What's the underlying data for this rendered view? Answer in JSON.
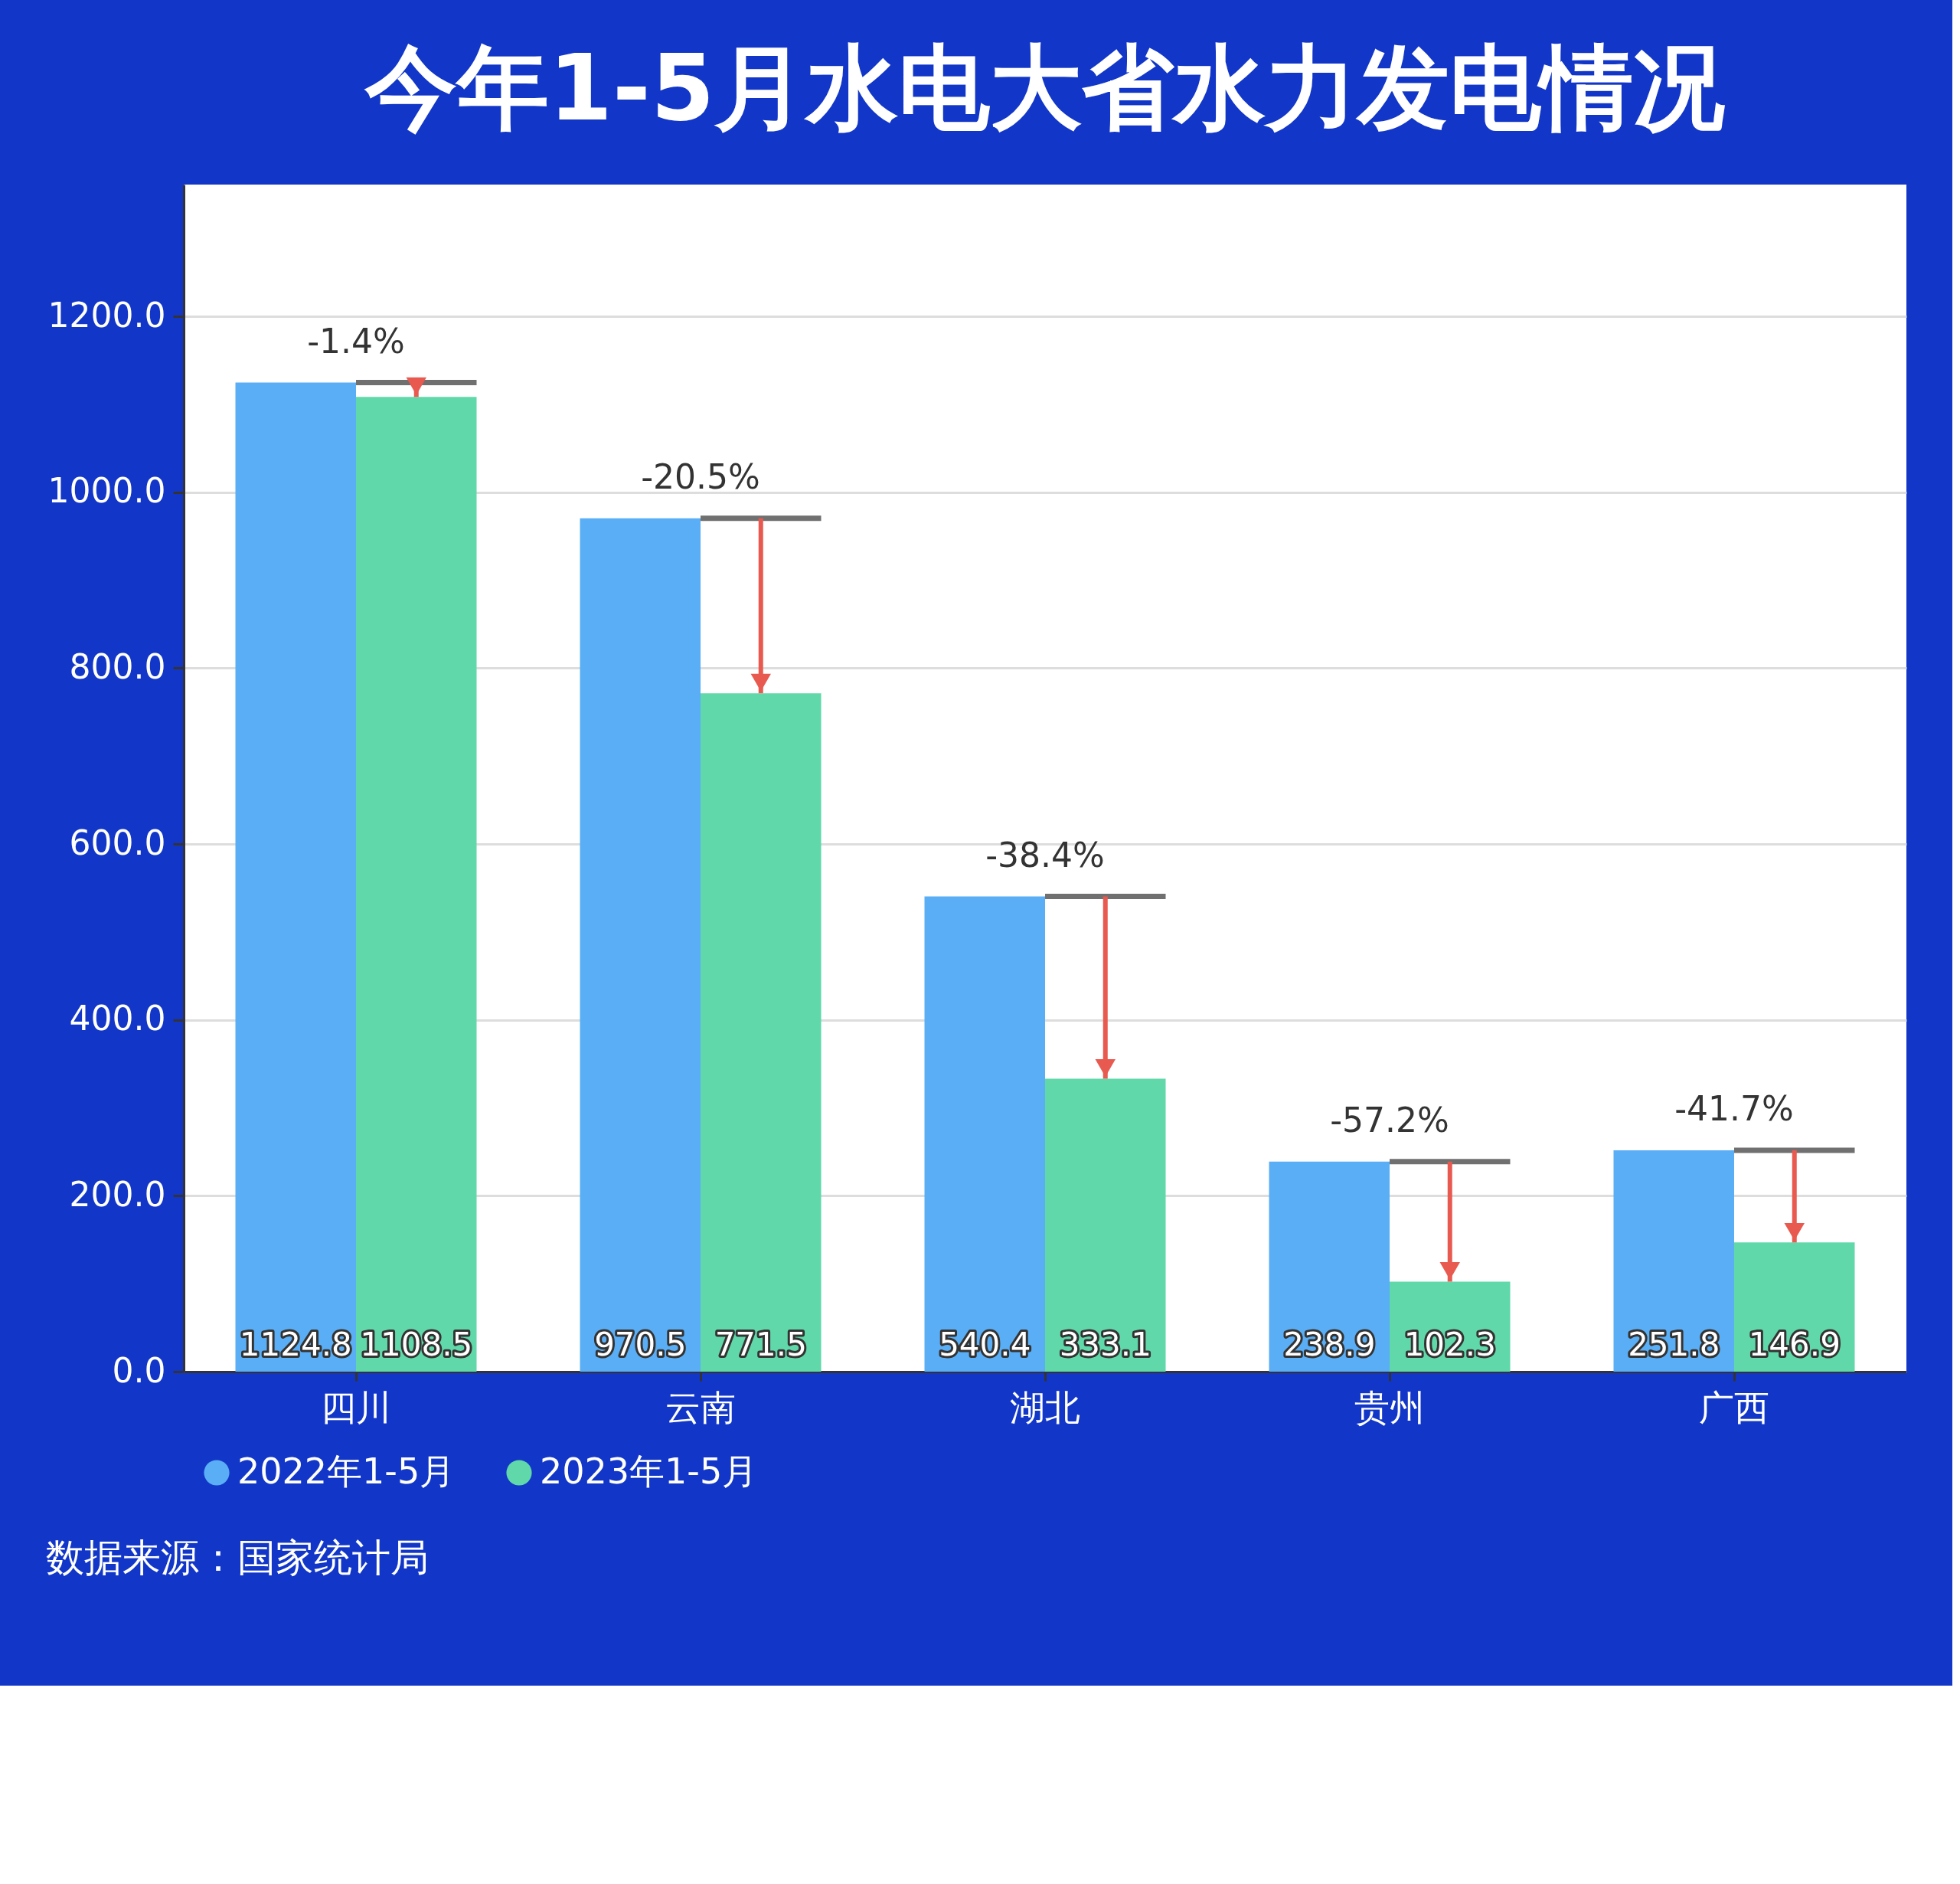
{
  "chart_data": {
    "type": "bar",
    "title": "今年1-5月水电大省水力发电情况",
    "categories": [
      "四川",
      "云南",
      "湖北",
      "贵州",
      "广西"
    ],
    "series": [
      {
        "name": "2022年1-5月",
        "color": "#5aaef5",
        "values": [
          1124.8,
          970.5,
          540.4,
          238.9,
          251.8
        ]
      },
      {
        "name": "2023年1-5月",
        "color": "#60d8aa",
        "values": [
          1108.5,
          771.5,
          333.1,
          102.3,
          146.9
        ]
      }
    ],
    "ylim": [
      0,
      1350
    ],
    "yticks": [
      {
        "value": 0,
        "label": "0.0"
      },
      {
        "value": 200,
        "label": "200.0"
      },
      {
        "value": 400,
        "label": "400.0"
      },
      {
        "value": 600,
        "label": "600.0"
      },
      {
        "value": 800,
        "label": "800.0"
      },
      {
        "value": 1000,
        "label": "1000.0"
      },
      {
        "value": 1200,
        "label": "1200.0"
      }
    ],
    "grid": "y",
    "legend": "bottom",
    "data_labels": true,
    "annotations": [
      {
        "text": "-1.4%",
        "x": "四川",
        "y": 1124.8
      },
      {
        "text": "-20.5%",
        "x": "云南",
        "y": 970.5
      },
      {
        "text": "-38.4%",
        "x": "湖北",
        "y": 540.4
      },
      {
        "text": "-57.2%",
        "x": "贵州",
        "y": 238.9
      },
      {
        "text": "-41.7%",
        "x": "广西",
        "y": 251.8
      },
      "数据来源：国家统计局"
    ]
  }
}
